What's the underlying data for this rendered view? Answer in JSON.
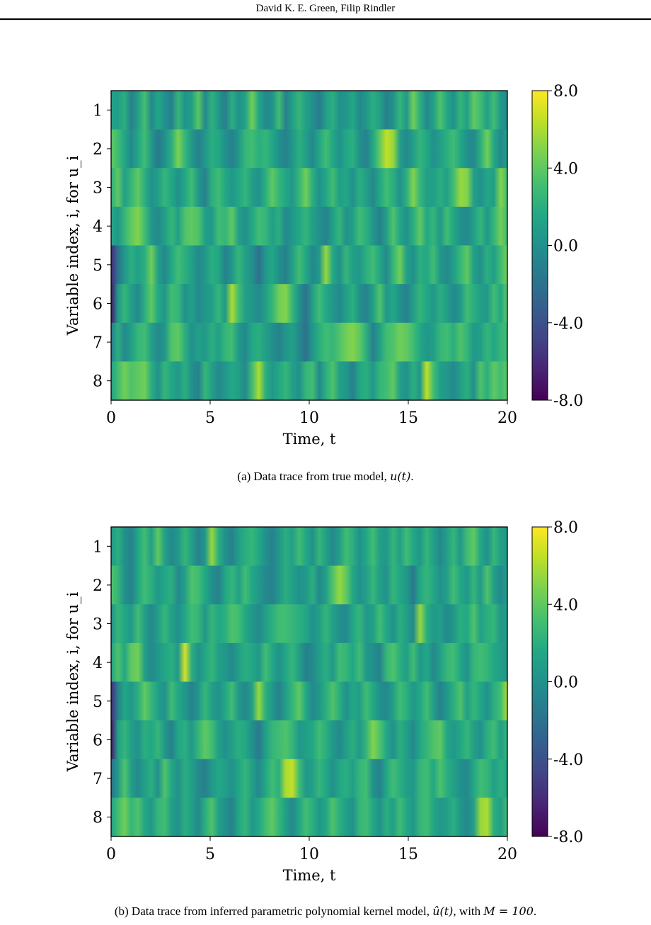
{
  "header": {
    "authors": "David K. E. Green, Filip Rindler"
  },
  "figures": [
    {
      "caption_prefix": "(a) Data trace from true model, ",
      "caption_math": "u(t)",
      "caption_suffix": "."
    },
    {
      "caption_prefix": "(b) Data trace from inferred parametric polynomial kernel model, ",
      "caption_math": "û(t)",
      "caption_mid": ", with ",
      "caption_math2": "M = 100",
      "caption_suffix": "."
    }
  ],
  "chart_data": [
    {
      "type": "heatmap",
      "title": "",
      "xlabel": "Time, t",
      "ylabel": "Variable index, i, for u_i",
      "xlim": [
        0,
        20
      ],
      "x_ticks": [
        "0",
        "5",
        "10",
        "15",
        "20"
      ],
      "y_ticks": [
        "1",
        "2",
        "3",
        "4",
        "5",
        "6",
        "7",
        "8"
      ],
      "colorbar": {
        "range": [
          -8.0,
          8.0
        ],
        "ticks": [
          "8.0",
          "4.0",
          "0.0",
          "-4.0",
          "-8.0"
        ],
        "colormap": "viridis"
      },
      "rows": [
        [
          1.2,
          0.8,
          2.0,
          -1.0,
          1.0,
          3.2,
          -0.5,
          1.5,
          0.0,
          -1.2,
          2.5,
          0.2,
          1.0,
          3.8,
          -0.5,
          2.2,
          0.5,
          -1.2,
          2.0,
          0.0,
          1.2,
          4.5,
          1.5,
          -0.5,
          0.0,
          3.0,
          -1.0,
          1.0,
          2.5,
          1.0,
          0.0,
          -1.5,
          1.0,
          2.0,
          0.0,
          0.5,
          1.5,
          -0.5,
          0.5,
          2.0,
          1.0,
          -1.0,
          0.0,
          2.5,
          0.5,
          4.5,
          2.0,
          -0.5,
          1.0,
          3.5,
          1.5,
          0.0,
          2.5,
          1.0,
          4.0,
          3.0,
          1.0,
          3.0,
          0.5,
          -0.5
        ],
        [
          4.0,
          3.0,
          1.5,
          -0.5,
          1.5,
          3.0,
          0.5,
          -1.5,
          0.0,
          2.0,
          4.8,
          2.5,
          0.5,
          -1.0,
          0.5,
          2.0,
          1.5,
          0.0,
          -1.0,
          0.5,
          2.5,
          3.0,
          2.0,
          2.5,
          1.5,
          0.0,
          -1.0,
          0.5,
          2.0,
          1.0,
          -0.5,
          1.5,
          3.0,
          1.5,
          0.0,
          1.5,
          2.0,
          0.0,
          -1.0,
          1.5,
          4.0,
          6.5,
          5.5,
          1.0,
          -0.5,
          1.0,
          2.5,
          1.5,
          0.0,
          1.0,
          2.0,
          3.0,
          1.5,
          0.0,
          -0.5,
          2.0,
          4.5,
          1.5,
          -0.5,
          1.0
        ],
        [
          2.0,
          4.0,
          1.0,
          2.5,
          4.0,
          2.0,
          0.0,
          1.0,
          2.5,
          1.5,
          0.0,
          1.5,
          3.0,
          0.5,
          -1.0,
          2.0,
          3.0,
          1.5,
          0.5,
          1.5,
          2.5,
          1.0,
          0.0,
          2.0,
          4.0,
          2.5,
          1.5,
          0.5,
          2.5,
          4.5,
          2.0,
          0.0,
          1.5,
          3.0,
          1.0,
          1.5,
          0.0,
          2.0,
          1.0,
          -0.5,
          1.5,
          3.0,
          2.0,
          0.0,
          2.0,
          5.0,
          2.5,
          1.0,
          1.0,
          2.0,
          1.0,
          3.0,
          5.5,
          5.0,
          1.0,
          0.0,
          1.5,
          1.0,
          5.0,
          3.0
        ],
        [
          1.5,
          0.5,
          2.5,
          4.0,
          5.0,
          3.0,
          0.5,
          -0.5,
          1.0,
          2.5,
          1.0,
          3.5,
          4.0,
          3.5,
          1.0,
          0.5,
          3.0,
          2.5,
          4.0,
          1.0,
          0.0,
          1.5,
          3.0,
          2.5,
          1.0,
          2.0,
          -0.5,
          0.5,
          1.5,
          2.5,
          1.0,
          0.0,
          -1.0,
          1.0,
          2.5,
          0.0,
          1.0,
          3.0,
          2.0,
          0.5,
          -1.0,
          1.0,
          3.5,
          1.5,
          0.0,
          2.0,
          4.0,
          1.5,
          2.5,
          0.5,
          3.0,
          1.5,
          0.0,
          -0.5,
          1.0,
          2.5,
          0.5,
          2.5,
          4.5,
          3.0
        ],
        [
          -6.0,
          -2.0,
          0.5,
          2.0,
          1.0,
          2.0,
          4.5,
          1.0,
          -0.5,
          1.5,
          3.0,
          2.0,
          1.0,
          -0.5,
          0.5,
          2.0,
          1.5,
          -1.0,
          0.5,
          2.5,
          1.0,
          0.0,
          -2.0,
          0.5,
          1.5,
          0.0,
          -1.0,
          1.0,
          3.0,
          1.5,
          -0.5,
          0.5,
          5.5,
          1.5,
          0.0,
          2.5,
          1.0,
          0.5,
          2.0,
          3.0,
          1.5,
          -0.5,
          2.5,
          4.5,
          1.0,
          0.0,
          2.0,
          1.5,
          3.0,
          0.5,
          -0.5,
          1.0,
          2.5,
          4.0,
          1.0,
          0.0,
          2.0,
          1.0,
          3.0,
          4.5
        ],
        [
          -7.0,
          0.5,
          2.5,
          1.0,
          -0.5,
          2.0,
          4.0,
          1.5,
          0.5,
          3.0,
          2.5,
          0.0,
          1.0,
          -0.5,
          0.5,
          1.0,
          2.5,
          0.5,
          6.0,
          3.0,
          1.0,
          0.5,
          -0.5,
          1.0,
          2.5,
          4.5,
          5.0,
          2.5,
          0.0,
          -2.0,
          1.0,
          3.0,
          1.5,
          0.5,
          -0.5,
          1.0,
          2.0,
          0.0,
          -1.0,
          1.0,
          3.5,
          0.5,
          1.5,
          0.0,
          -1.0,
          1.0,
          2.5,
          1.5,
          0.5,
          2.0,
          1.0,
          -0.5,
          0.5,
          3.0,
          2.0,
          1.0,
          0.5,
          3.0,
          1.5,
          4.0
        ],
        [
          -1.5,
          2.0,
          -0.5,
          1.0,
          2.5,
          3.0,
          1.0,
          -0.5,
          0.5,
          3.5,
          4.0,
          2.0,
          0.0,
          1.0,
          0.5,
          2.0,
          1.0,
          2.5,
          3.0,
          0.5,
          -0.5,
          1.5,
          2.0,
          1.0,
          0.0,
          -1.0,
          0.5,
          1.0,
          -0.5,
          -2.0,
          0.5,
          2.0,
          3.0,
          2.5,
          3.5,
          4.5,
          5.0,
          4.0,
          2.0,
          -1.0,
          1.0,
          3.0,
          3.5,
          4.5,
          4.0,
          3.0,
          1.5,
          0.5,
          1.0,
          2.5,
          3.0,
          2.0,
          3.5,
          2.5,
          0.5,
          1.0,
          2.5,
          1.5,
          2.5,
          3.0
        ],
        [
          1.0,
          3.0,
          4.5,
          3.5,
          4.0,
          4.5,
          2.0,
          0.0,
          2.5,
          1.5,
          0.5,
          2.0,
          0.0,
          -1.0,
          2.5,
          1.0,
          -0.5,
          0.5,
          1.5,
          1.0,
          -0.5,
          3.0,
          6.0,
          2.0,
          0.5,
          1.5,
          2.5,
          1.0,
          0.0,
          2.5,
          3.0,
          -0.5,
          2.0,
          3.5,
          1.0,
          0.5,
          -1.0,
          1.5,
          2.0,
          0.5,
          2.5,
          3.0,
          4.0,
          1.0,
          0.0,
          2.0,
          0.5,
          6.5,
          3.0,
          1.0,
          0.5,
          -0.5,
          1.0,
          2.0,
          0.0,
          3.5,
          2.0,
          4.0,
          3.0,
          4.0
        ]
      ]
    },
    {
      "type": "heatmap",
      "title": "",
      "xlabel": "Time, t",
      "ylabel": "Variable index, i, for u_i",
      "xlim": [
        0,
        20
      ],
      "x_ticks": [
        "0",
        "5",
        "10",
        "15",
        "20"
      ],
      "y_ticks": [
        "1",
        "2",
        "3",
        "4",
        "5",
        "6",
        "7",
        "8"
      ],
      "colorbar": {
        "range": [
          -8.0,
          8.0
        ],
        "ticks": [
          "8.0",
          "4.0",
          "0.0",
          "-4.0",
          "-8.0"
        ],
        "colormap": "viridis"
      },
      "rows": [
        [
          0.5,
          2.0,
          0.0,
          -1.0,
          1.5,
          3.0,
          1.0,
          4.0,
          1.0,
          -0.5,
          0.5,
          2.5,
          1.0,
          -1.0,
          0.5,
          5.5,
          2.0,
          0.0,
          -1.0,
          1.0,
          2.0,
          2.5,
          1.5,
          0.0,
          -1.0,
          0.5,
          2.0,
          1.0,
          3.0,
          1.5,
          0.0,
          2.5,
          1.0,
          -0.5,
          1.0,
          3.0,
          2.0,
          0.0,
          1.5,
          3.0,
          1.0,
          0.5,
          2.5,
          1.0,
          3.0,
          1.5,
          0.5,
          2.5,
          1.0,
          -0.5,
          1.0,
          2.5,
          0.5,
          3.0,
          4.0,
          1.5,
          0.0,
          2.5,
          1.0,
          0.5
        ],
        [
          3.5,
          2.5,
          0.0,
          -1.0,
          1.5,
          3.0,
          2.0,
          0.5,
          1.5,
          2.0,
          -0.5,
          1.0,
          3.5,
          3.0,
          1.5,
          0.0,
          -1.0,
          1.5,
          2.5,
          1.0,
          3.0,
          1.5,
          0.5,
          -0.5,
          -1.0,
          0.5,
          2.0,
          1.0,
          0.0,
          0.5,
          2.0,
          -0.5,
          1.0,
          3.5,
          5.5,
          4.0,
          1.5,
          0.0,
          1.0,
          2.5,
          1.0,
          0.0,
          2.5,
          1.5,
          0.5,
          -1.5,
          1.5,
          2.5,
          1.5,
          0.0,
          1.0,
          3.0,
          1.5,
          0.5,
          2.5,
          0.5,
          3.5,
          1.0,
          -0.5,
          1.0
        ],
        [
          0.0,
          2.5,
          1.5,
          0.5,
          3.0,
          1.0,
          -0.5,
          1.0,
          2.5,
          1.0,
          0.0,
          1.5,
          3.0,
          2.5,
          0.5,
          2.5,
          1.5,
          2.0,
          3.5,
          3.0,
          1.5,
          0.5,
          -0.5,
          1.0,
          2.0,
          3.0,
          3.0,
          2.5,
          2.0,
          1.5,
          0.0,
          1.0,
          2.5,
          1.0,
          0.0,
          -0.5,
          1.5,
          2.5,
          0.5,
          1.0,
          3.0,
          1.5,
          0.0,
          2.0,
          1.0,
          -0.5,
          5.5,
          2.0,
          0.5,
          1.0,
          -0.5,
          0.5,
          2.0,
          1.5,
          3.5,
          1.0,
          2.0,
          2.5,
          0.5,
          1.0
        ],
        [
          1.0,
          3.5,
          1.5,
          4.0,
          4.5,
          1.0,
          -0.5,
          0.5,
          1.5,
          2.0,
          0.5,
          7.0,
          2.0,
          0.0,
          1.5,
          2.5,
          1.0,
          0.5,
          -0.5,
          1.0,
          2.0,
          1.5,
          0.5,
          3.0,
          1.5,
          0.0,
          1.5,
          2.5,
          1.0,
          -1.0,
          -0.5,
          1.0,
          2.0,
          0.5,
          3.0,
          2.5,
          1.5,
          3.0,
          0.5,
          0.0,
          -1.0,
          2.5,
          3.5,
          2.0,
          1.0,
          3.0,
          0.5,
          1.5,
          -0.5,
          1.0,
          2.5,
          3.0,
          1.5,
          0.0,
          2.5,
          3.0,
          2.5,
          1.5,
          1.0,
          0.5
        ],
        [
          -6.0,
          -1.0,
          1.5,
          0.5,
          2.0,
          4.0,
          2.5,
          1.0,
          0.0,
          3.0,
          1.5,
          0.5,
          -1.0,
          0.5,
          2.5,
          1.0,
          0.0,
          1.5,
          3.0,
          0.5,
          -0.5,
          1.0,
          5.5,
          2.0,
          0.5,
          -1.0,
          1.0,
          2.5,
          4.0,
          1.5,
          -0.5,
          0.5,
          2.0,
          3.5,
          2.0,
          0.0,
          1.5,
          1.0,
          3.0,
          1.5,
          0.0,
          -0.5,
          1.0,
          3.0,
          2.0,
          0.5,
          1.5,
          3.0,
          1.0,
          -1.0,
          0.5,
          2.0,
          3.5,
          1.0,
          2.5,
          1.5,
          0.0,
          2.0,
          3.0,
          6.0
        ],
        [
          -7.0,
          1.0,
          2.5,
          1.0,
          0.0,
          2.0,
          1.5,
          2.5,
          0.5,
          -1.0,
          1.5,
          2.0,
          0.5,
          2.5,
          4.0,
          3.0,
          1.0,
          0.0,
          1.0,
          2.0,
          1.5,
          0.0,
          -1.5,
          1.0,
          2.5,
          3.0,
          3.5,
          2.5,
          0.5,
          1.0,
          1.5,
          3.0,
          2.0,
          0.5,
          -0.5,
          1.0,
          2.0,
          0.5,
          2.5,
          5.0,
          3.5,
          1.5,
          0.0,
          2.0,
          1.0,
          -0.5,
          1.5,
          2.5,
          3.5,
          4.0,
          1.5,
          0.5,
          1.5,
          2.5,
          1.0,
          0.0,
          2.0,
          3.0,
          1.0,
          2.5
        ],
        [
          -2.0,
          0.5,
          3.5,
          1.0,
          -0.5,
          1.0,
          2.0,
          0.0,
          3.5,
          1.5,
          0.0,
          2.0,
          1.0,
          -0.5,
          -1.0,
          0.5,
          1.5,
          1.0,
          0.0,
          1.5,
          2.5,
          1.0,
          -0.5,
          1.5,
          3.0,
          2.0,
          6.0,
          6.5,
          3.0,
          0.5,
          1.0,
          2.5,
          1.5,
          0.0,
          1.5,
          2.0,
          1.0,
          2.5,
          3.0,
          0.0,
          -1.0,
          1.5,
          3.0,
          2.0,
          1.0,
          0.5,
          2.5,
          3.0,
          1.5,
          3.5,
          2.0,
          1.0,
          0.0,
          -0.5,
          1.5,
          3.0,
          2.5,
          1.0,
          2.0,
          1.5
        ],
        [
          1.0,
          3.0,
          4.5,
          2.5,
          3.5,
          1.5,
          0.5,
          2.5,
          3.0,
          1.0,
          0.0,
          2.0,
          1.0,
          -0.5,
          2.0,
          3.5,
          1.0,
          0.0,
          -1.0,
          1.5,
          2.5,
          0.5,
          1.5,
          3.0,
          4.0,
          2.5,
          1.0,
          -0.5,
          1.5,
          3.0,
          2.0,
          0.5,
          1.5,
          3.5,
          2.0,
          1.0,
          0.0,
          2.5,
          3.0,
          1.5,
          0.0,
          2.0,
          1.0,
          3.0,
          1.5,
          0.5,
          2.5,
          3.0,
          1.5,
          0.5,
          1.0,
          2.0,
          0.5,
          -0.5,
          1.0,
          5.5,
          6.0,
          2.0,
          1.0,
          3.0
        ]
      ]
    }
  ]
}
